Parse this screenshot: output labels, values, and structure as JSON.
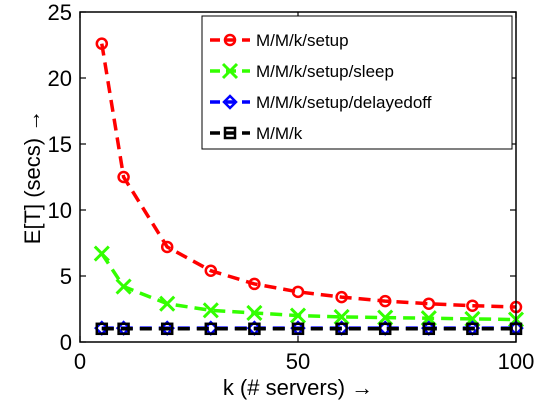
{
  "chart_data": {
    "type": "line",
    "title": "",
    "xlabel": "k (# servers) →",
    "ylabel": "E[T] (secs) →",
    "xlim": [
      0,
      100
    ],
    "ylim": [
      0,
      25
    ],
    "xticks": [
      "0",
      "50",
      "100"
    ],
    "yticks": [
      "0",
      "5",
      "10",
      "15",
      "20",
      "25"
    ],
    "grid": false,
    "legend": "top-right",
    "x": [
      5,
      10,
      20,
      30,
      40,
      50,
      60,
      70,
      80,
      90,
      100
    ],
    "series": [
      {
        "name": "M/M/k/setup",
        "color": "#ff0000",
        "marker": "circle",
        "values": [
          22.6,
          12.5,
          7.2,
          5.4,
          4.4,
          3.8,
          3.4,
          3.1,
          2.9,
          2.75,
          2.65
        ]
      },
      {
        "name": "M/M/k/setup/sleep",
        "color": "#33ff00",
        "marker": "x",
        "values": [
          6.7,
          4.2,
          2.9,
          2.4,
          2.2,
          2.0,
          1.9,
          1.85,
          1.8,
          1.75,
          1.7
        ]
      },
      {
        "name": "M/M/k/setup/delayedoff",
        "color": "#0000ff",
        "marker": "diamond",
        "values": [
          1.05,
          1.05,
          1.05,
          1.05,
          1.05,
          1.05,
          1.05,
          1.05,
          1.05,
          1.05,
          1.05
        ]
      },
      {
        "name": "M/M/k",
        "color": "#000000",
        "marker": "square",
        "values": [
          1.0,
          1.0,
          1.0,
          1.0,
          1.0,
          1.0,
          1.0,
          1.0,
          1.0,
          1.0,
          1.0
        ]
      }
    ]
  }
}
